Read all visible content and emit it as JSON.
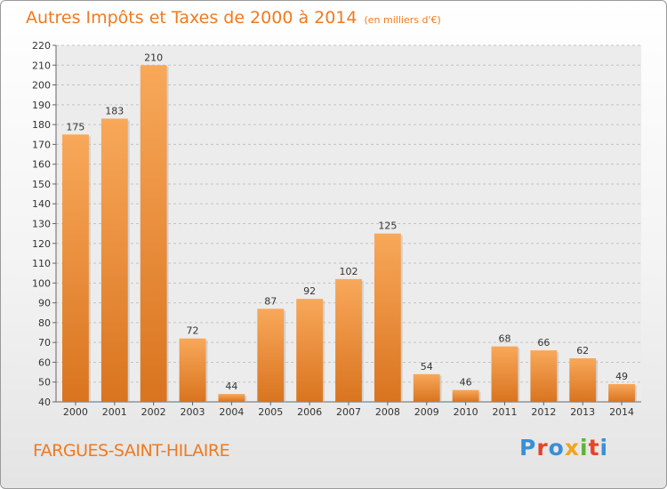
{
  "title": "Autres Impôts et Taxes de 2000 à 2014",
  "unit": "(en milliers d'€)",
  "commune": "FARGUES-SAINT-HILAIRE",
  "logo": [
    "P",
    "r",
    "o",
    "x",
    "i",
    "t",
    "i"
  ],
  "colors": {
    "bar_top": "#f8a85a",
    "bar_bottom": "#d9741f",
    "title": "#f07a1e"
  },
  "chart_data": {
    "type": "bar",
    "categories": [
      "2000",
      "2001",
      "2002",
      "2003",
      "2004",
      "2005",
      "2006",
      "2007",
      "2008",
      "2009",
      "2010",
      "2011",
      "2012",
      "2013",
      "2014"
    ],
    "values": [
      175,
      183,
      210,
      72,
      44,
      87,
      92,
      102,
      125,
      54,
      46,
      68,
      66,
      62,
      49
    ],
    "ylim": [
      40,
      220
    ],
    "yticks": [
      40,
      50,
      60,
      70,
      80,
      90,
      100,
      110,
      120,
      130,
      140,
      150,
      160,
      170,
      180,
      190,
      200,
      210,
      220
    ],
    "grid": "horizontal dashed"
  }
}
